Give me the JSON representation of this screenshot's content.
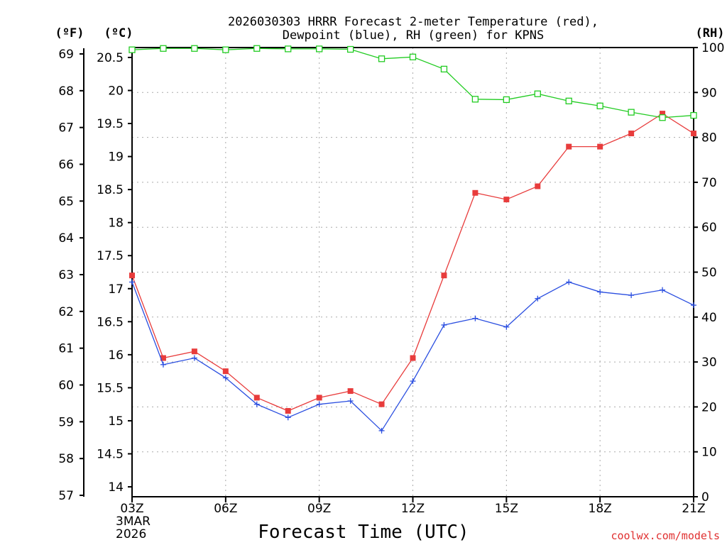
{
  "title_line1": "2026030303 HRRR Forecast 2-meter Temperature (red),",
  "title_line2": "Dewpoint (blue), RH (green) for KPNS",
  "unit_f": "(ºF)",
  "unit_c": "(ºC)",
  "unit_rh": "(RH)",
  "x_axis_label": "Forecast Time (UTC)",
  "date_line1": "3MAR",
  "date_line2": "2026",
  "credit": "coolwx.com/models",
  "colors": {
    "temperature": "#e83c3c",
    "dewpoint": "#2a4ee0",
    "rh": "#22cc22",
    "grid": "#aaaaaa"
  },
  "chart_data": {
    "type": "line",
    "title": "2026030303 HRRR Forecast 2-meter Temperature (red), Dewpoint (blue), RH (green) for KPNS",
    "xlabel": "Forecast Time (UTC)",
    "x": [
      3,
      4,
      5,
      6,
      7,
      8,
      9,
      10,
      11,
      12,
      13,
      14,
      15,
      16,
      17,
      18,
      19,
      20,
      21
    ],
    "x_ticks": [
      {
        "h": 3,
        "label": "03Z"
      },
      {
        "h": 6,
        "label": "06Z"
      },
      {
        "h": 9,
        "label": "09Z"
      },
      {
        "h": 12,
        "label": "12Z"
      },
      {
        "h": 15,
        "label": "15Z"
      },
      {
        "h": 18,
        "label": "18Z"
      },
      {
        "h": 21,
        "label": "21Z"
      }
    ],
    "xlim": [
      3,
      21
    ],
    "left_axis_c": {
      "label": "(ºC)",
      "ylim": [
        13.85,
        20.65
      ],
      "ticks": [
        "14",
        "14.5",
        "15",
        "15.5",
        "16",
        "16.5",
        "17",
        "17.5",
        "18",
        "18.5",
        "19",
        "19.5",
        "20",
        "20.5"
      ]
    },
    "left_axis_f": {
      "label": "(ºF)",
      "range": [
        57,
        69
      ],
      "ticks": [
        "57",
        "58",
        "59",
        "60",
        "61",
        "62",
        "63",
        "64",
        "65",
        "66",
        "67",
        "68",
        "69"
      ]
    },
    "right_axis_rh": {
      "label": "(RH)",
      "ylim": [
        0,
        100
      ],
      "ticks": [
        "0",
        "10",
        "20",
        "30",
        "40",
        "50",
        "60",
        "70",
        "80",
        "90",
        "100"
      ]
    },
    "grid": true,
    "series": [
      {
        "name": "Temperature",
        "units": "C",
        "axis": "C",
        "marker": "filled-square",
        "color": "#e83c3c",
        "values": [
          17.2,
          15.95,
          16.05,
          15.75,
          15.35,
          15.15,
          15.35,
          15.45,
          15.25,
          15.95,
          17.2,
          18.45,
          18.35,
          18.55,
          19.15,
          19.15,
          19.35,
          19.65,
          19.35
        ]
      },
      {
        "name": "Dewpoint",
        "units": "C",
        "axis": "C",
        "marker": "plus",
        "color": "#2a4ee0",
        "values": [
          17.1,
          15.85,
          15.95,
          15.65,
          15.25,
          15.05,
          15.25,
          15.3,
          14.85,
          15.6,
          16.45,
          16.55,
          16.42,
          16.85,
          17.1,
          16.95,
          16.9,
          16.98,
          16.75
        ]
      },
      {
        "name": "RH",
        "units": "%",
        "axis": "RH",
        "marker": "hollow-square",
        "color": "#22cc22",
        "values": [
          99.5,
          99.8,
          99.8,
          99.5,
          99.8,
          99.7,
          99.7,
          99.6,
          97.5,
          97.9,
          95.2,
          88.5,
          88.4,
          89.7,
          88.1,
          87.0,
          85.6,
          84.4,
          84.9
        ]
      }
    ]
  }
}
